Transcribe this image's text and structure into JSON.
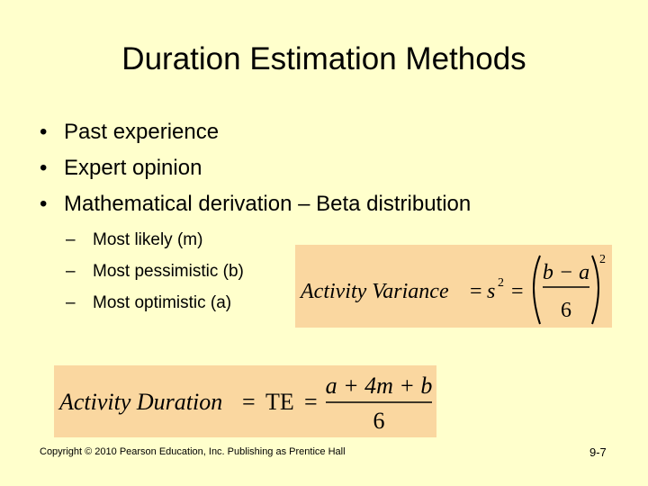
{
  "slide": {
    "title": "Duration Estimation Methods",
    "bullets": [
      "Past experience",
      "Expert opinion",
      "Mathematical derivation – Beta distribution"
    ],
    "sub_bullets": [
      "Most likely (m)",
      "Most pessimistic (b)",
      "Most optimistic (a)"
    ]
  },
  "formulas": {
    "variance": {
      "lhs": "Activity Variance",
      "eq1": "=",
      "s": "s",
      "s_exp": "2",
      "eq2": "=",
      "numerator": "b − a",
      "denominator": "6",
      "outer_exp": "2"
    },
    "duration": {
      "lhs": "Activity Duration",
      "eq1": "=",
      "te": "TE",
      "eq2": "=",
      "numerator": "a + 4m + b",
      "denominator": "6"
    }
  },
  "footer": {
    "copyright": "Copyright © 2010 Pearson Education, Inc. Publishing as Prentice Hall",
    "page_number": "9-7"
  },
  "colors": {
    "background": "#FFFFCC",
    "formula_box": "#FAD7A0"
  }
}
